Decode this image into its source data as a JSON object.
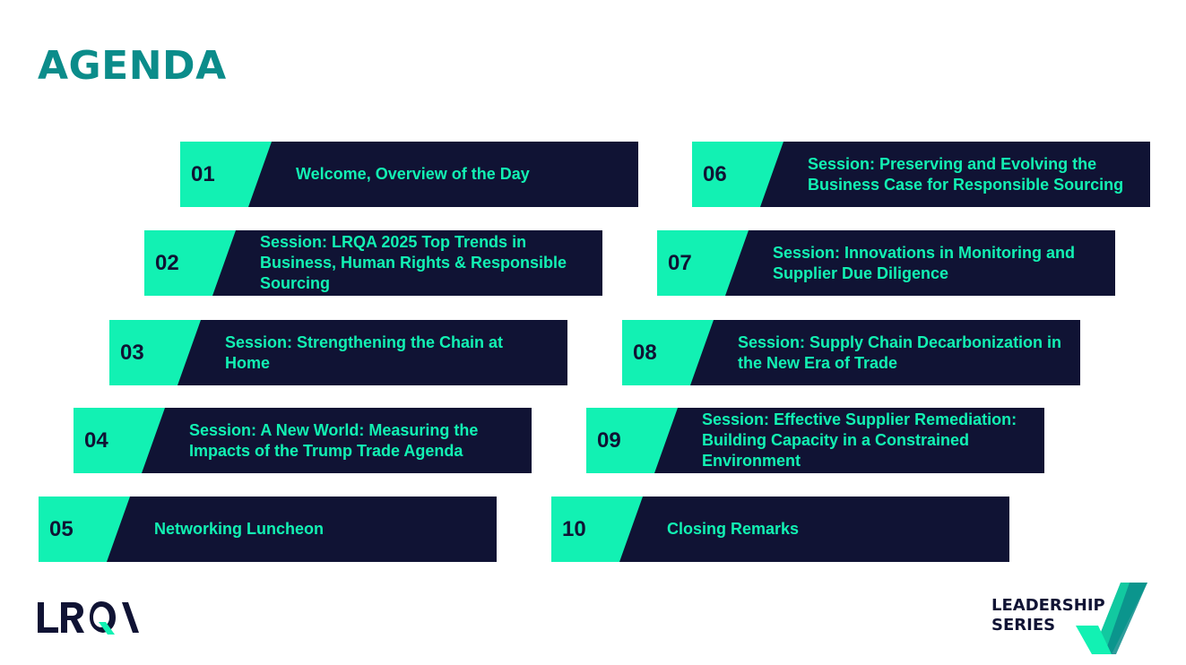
{
  "title": "AGENDA",
  "items": [
    {
      "num": "01",
      "label": "Welcome, Overview of the Day"
    },
    {
      "num": "02",
      "label": "Session: LRQA 2025 Top Trends in Business, Human Rights & Responsible Sourcing"
    },
    {
      "num": "03",
      "label": "Session: Strengthening the Chain at Home"
    },
    {
      "num": "04",
      "label": "Session: A New World: Measuring the Impacts of the Trump Trade Agenda"
    },
    {
      "num": "05",
      "label": "Networking Luncheon"
    },
    {
      "num": "06",
      "label": "Session: Preserving and Evolving the Business Case for Responsible Sourcing"
    },
    {
      "num": "07",
      "label": "Session: Innovations in Monitoring and Supplier Due Diligence"
    },
    {
      "num": "08",
      "label": "Session: Supply Chain Decarbonization in the New Era of Trade"
    },
    {
      "num": "09",
      "label": "Session: Effective Supplier Remediation: Building Capacity in a Constrained Environment"
    },
    {
      "num": "10",
      "label": "Closing Remarks"
    }
  ],
  "logos": {
    "left": "LRQA",
    "right_line1": "LEADERSHIP",
    "right_line2": "SERIES"
  },
  "colors": {
    "accent": "#12f1b3",
    "navy": "#101334",
    "title": "#0b8c8a"
  }
}
